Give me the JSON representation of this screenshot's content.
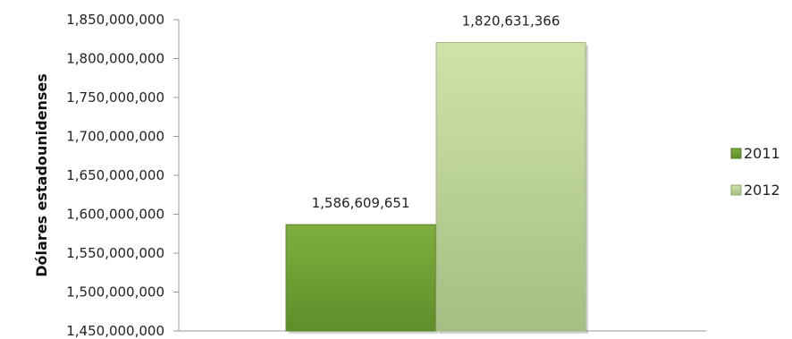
{
  "chart_data": {
    "type": "bar",
    "title": "",
    "xlabel": "",
    "ylabel": "Dólares estadounidenses",
    "ylim": [
      1450000000,
      1850000000
    ],
    "ytick_step": 50000000,
    "ytick_labels": [
      "1,450,000,000",
      "1,500,000,000",
      "1,550,000,000",
      "1,600,000,000",
      "1,650,000,000",
      "1,700,000,000",
      "1,750,000,000",
      "1,800,000,000",
      "1,850,000,000"
    ],
    "grid": false,
    "legend_position": "right",
    "categories": [
      ""
    ],
    "series": [
      {
        "name": "2011",
        "values": [
          1586609651
        ],
        "label": "1,586,609,651",
        "color": "#78a83a"
      },
      {
        "name": "2012",
        "values": [
          1820631366
        ],
        "label": "1,820,631,366",
        "color": "#b8d48c"
      }
    ]
  }
}
